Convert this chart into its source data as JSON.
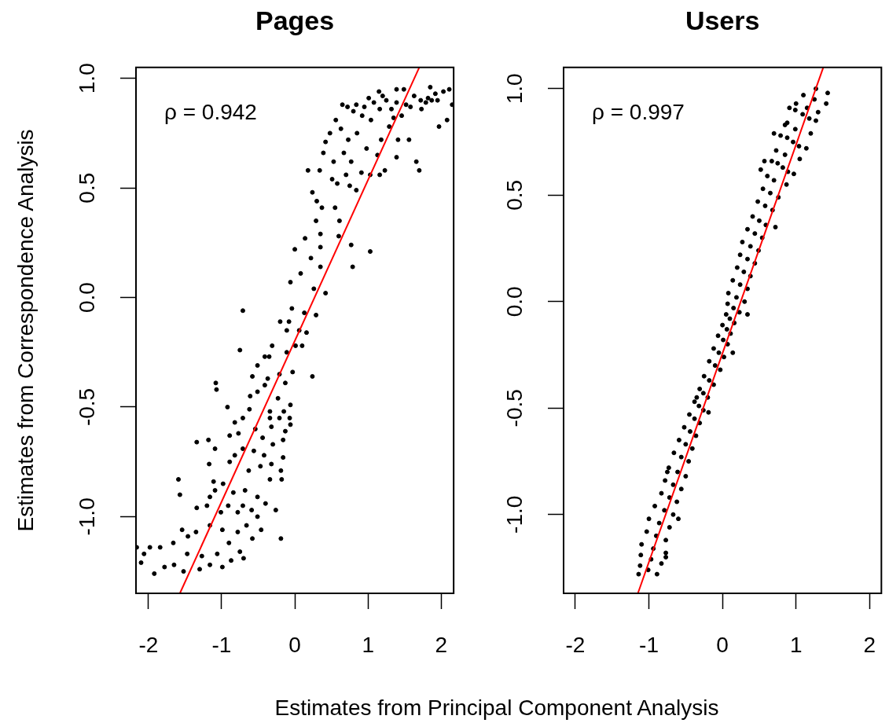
{
  "chart_data": [
    {
      "type": "scatter",
      "title": "Pages",
      "xlabel": "Estimates from Principal Component Analysis",
      "ylabel": "Estimates from Correspondence Analysis",
      "annotations": [
        "ρ = 0.942"
      ],
      "xlim": [
        -2.17,
        2.17
      ],
      "ylim": [
        -1.35,
        1.05
      ],
      "xticks": [
        -2,
        -1,
        0,
        1,
        2
      ],
      "yticks": [
        {
          "value": -1,
          "label": "-1.0"
        },
        {
          "value": -0.5,
          "label": "-0.5"
        },
        {
          "value": 0,
          "label": "0.0"
        },
        {
          "value": 0.5,
          "label": "0.5"
        },
        {
          "value": 1,
          "label": "1.0"
        }
      ],
      "marker": "circle",
      "series": [
        {
          "color": "#000000",
          "x": [
            -2.1,
            -2.06,
            -1.98,
            -1.92,
            -1.84,
            -1.78,
            -1.66,
            -1.59,
            -1.57,
            -1.65,
            -1.52,
            -1.54,
            -1.47,
            -1.46,
            -1.34,
            -1.34,
            -1.35,
            -1.3,
            -1.27,
            -1.18,
            -1.17,
            -1.16,
            -1.2,
            -1.16,
            -1.16,
            -1.11,
            -1.09,
            -1.08,
            -1.07,
            -1.09,
            -1.06,
            -0.99,
            -0.99,
            -1.01,
            -0.98,
            -0.92,
            -0.89,
            -0.89,
            -0.91,
            -0.9,
            -0.87,
            -0.84,
            -0.82,
            -0.82,
            -0.77,
            -0.78,
            -0.78,
            -0.75,
            -0.75,
            -0.71,
            -0.71,
            -0.71,
            -0.71,
            -0.68,
            -0.66,
            -0.7,
            -0.63,
            -0.61,
            -0.62,
            -0.59,
            -0.58,
            -0.58,
            -0.56,
            -0.54,
            -0.51,
            -0.51,
            -0.51,
            -0.51,
            -0.47,
            -0.46,
            -0.44,
            -0.42,
            -0.41,
            -0.41,
            -0.4,
            -0.37,
            -0.35,
            -0.34,
            -0.32,
            -0.34,
            -0.32,
            -0.31,
            -0.34,
            -0.3,
            -0.26,
            -0.21,
            -0.23,
            -0.21,
            -0.2,
            -0.19,
            -0.19,
            -0.18,
            -0.16,
            -0.16,
            -0.15,
            -0.13,
            -0.13,
            -0.11,
            -0.11,
            -0.08,
            -0.07,
            -0.06,
            -0.06,
            -0.04,
            -0.03,
            0.01,
            0.06,
            0.1,
            0.13,
            0.16,
            0.24,
            0.29,
            0.0,
            -0.06,
            0.08,
            0.18,
            0.24,
            0.14,
            0.22,
            0.26,
            0.29,
            0.3,
            0.34,
            0.37,
            0.35,
            0.35,
            0.39,
            0.42,
            0.48,
            0.35,
            0.42,
            0.51,
            0.53,
            0.55,
            0.56,
            0.6,
            0.58,
            0.63,
            0.67,
            0.61,
            0.7,
            0.72,
            0.75,
            0.73,
            0.77,
            0.77,
            0.79,
            0.85,
            0.84,
            0.84,
            0.91,
            0.92,
            1.03,
            0.98,
            1.01,
            1.03,
            1.04,
            1.13,
            1.15,
            1.16,
            1.18,
            1.16,
            1.23,
            1.25,
            1.29,
            1.32,
            1.39,
            1.39,
            1.39,
            1.41,
            1.46,
            1.49,
            1.56,
            1.58,
            1.63,
            1.66,
            1.7,
            1.73,
            1.72,
            1.82,
            1.85,
            1.92,
            1.97,
            2.03,
            2.08,
            2.11,
            2.15,
            1.87,
            1.79,
            -2.16,
            0.65,
            0.8,
            0.95,
            1.08,
            1.2,
            1.35,
            1.52,
            1.95
          ],
          "values": [
            -1.21,
            -1.17,
            -1.14,
            -1.26,
            -1.14,
            -1.23,
            -1.12,
            -0.83,
            -0.9,
            -1.22,
            -1.25,
            -1.06,
            -1.17,
            -1.09,
            -0.96,
            -0.66,
            -1.07,
            -1.24,
            -1.18,
            -0.65,
            -0.76,
            -0.91,
            -0.95,
            -1.22,
            -1.04,
            -0.84,
            -0.69,
            -0.39,
            -0.42,
            -0.88,
            -1.17,
            -1.23,
            -1.06,
            -0.98,
            -0.85,
            -0.5,
            -0.63,
            -0.75,
            -0.95,
            -1.12,
            -1.2,
            -0.89,
            -0.57,
            -0.72,
            -0.62,
            -0.98,
            -1.07,
            -1.16,
            -0.24,
            -0.06,
            -0.55,
            -0.69,
            -0.95,
            -0.88,
            -1.04,
            -1.19,
            -0.79,
            -0.45,
            -0.51,
            -0.97,
            -0.36,
            -1.1,
            -0.7,
            -0.6,
            -0.31,
            -0.43,
            -0.91,
            -1.0,
            -0.77,
            -1.06,
            -0.64,
            -0.72,
            -0.4,
            -0.27,
            -0.94,
            -0.37,
            -0.27,
            -0.83,
            -0.76,
            -0.55,
            -0.59,
            -0.22,
            -0.52,
            -0.67,
            -0.97,
            -0.55,
            -0.46,
            -0.35,
            -0.11,
            -1.1,
            -0.79,
            -0.83,
            -0.65,
            -0.73,
            -0.52,
            -0.61,
            -0.39,
            -0.25,
            -0.15,
            -0.11,
            -0.55,
            -0.58,
            -0.49,
            -0.05,
            -0.34,
            -0.22,
            -0.15,
            -0.22,
            -0.07,
            -0.16,
            -0.36,
            -0.08,
            0.22,
            0.07,
            0.11,
            0.58,
            0.48,
            0.27,
            0.18,
            0.04,
            0.35,
            0.44,
            0.58,
            0.41,
            0.29,
            0.23,
            0.66,
            0.71,
            0.75,
            0.14,
            0.02,
            0.54,
            0.62,
            0.41,
            0.81,
            0.28,
            0.52,
            0.77,
            0.66,
            0.35,
            0.56,
            0.87,
            0.51,
            0.72,
            0.62,
            0.24,
            0.14,
            0.75,
            0.49,
            0.88,
            0.57,
            0.83,
            0.21,
            0.68,
            0.91,
            0.56,
            0.81,
            0.65,
            0.94,
            0.56,
            0.72,
            0.86,
            0.58,
            0.9,
            0.78,
            0.86,
            0.95,
            0.64,
            0.89,
            0.72,
            0.83,
            0.95,
            0.72,
            0.87,
            0.92,
            0.62,
            0.58,
            0.86,
            0.9,
            0.91,
            0.96,
            0.93,
            0.78,
            0.94,
            0.81,
            0.95,
            0.88,
            0.9,
            0.89,
            -1.14,
            0.88,
            0.85,
            0.87,
            0.89,
            0.92,
            0.82,
            0.88,
            0.9
          ]
        },
        {
          "type": "line",
          "marker": "none",
          "color": "#ff0000",
          "x": [
            -1.57,
            1.7
          ],
          "values": [
            -1.35,
            1.05
          ]
        }
      ]
    },
    {
      "type": "scatter",
      "title": "Users",
      "annotations": [
        "ρ = 0.997"
      ],
      "xlim": [
        -2.16,
        2.16
      ],
      "ylim": [
        -1.37,
        1.1
      ],
      "xticks": [
        -2,
        -1,
        0,
        1,
        2
      ],
      "yticks": [
        {
          "value": -1,
          "label": "-1.0"
        },
        {
          "value": -0.5,
          "label": "-0.5"
        },
        {
          "value": 0,
          "label": "0.0"
        },
        {
          "value": 0.5,
          "label": "0.5"
        },
        {
          "value": 1,
          "label": "1.0"
        }
      ],
      "marker": "circle",
      "series": [
        {
          "color": "#000000",
          "x": [
            -1.12,
            -1.01,
            -0.89,
            -1.1,
            -0.94,
            -0.77,
            -1.0,
            -0.86,
            -0.72,
            -0.83,
            -0.72,
            -0.62,
            -0.73,
            -0.61,
            -0.5,
            -0.59,
            -0.5,
            -0.41,
            -0.45,
            -0.38,
            -0.31,
            -0.31,
            -0.26,
            -0.2,
            -0.18,
            -0.1,
            -0.03,
            -0.06,
            0.01,
            0.07,
            0.05,
            0.1,
            0.16,
            0.08,
            0.19,
            0.3,
            0.2,
            0.29,
            0.38,
            0.27,
            0.38,
            0.49,
            0.41,
            0.5,
            0.59,
            0.55,
            0.65,
            0.76,
            0.67,
            0.75,
            0.82,
            0.89,
            0.97,
            0.79,
            0.88,
            0.96,
            1.04,
            1.14,
            0.91,
            0.99,
            1.09,
            1.18,
            1.27,
            1.1,
            1.25,
            1.41,
            1.27,
            1.43,
            -1.11,
            -0.97,
            -0.83,
            -0.9,
            -0.79,
            -0.67,
            -0.56,
            -0.44,
            -0.32,
            -0.18,
            -0.05,
            0.06,
            0.15,
            0.24,
            0.34,
            0.44,
            0.58,
            0.7,
            0.85,
            0.99,
            1.15,
            0.57,
            0.52,
            0.7,
            0.88,
            0.72,
            0.34,
            0.14,
            -0.19,
            -0.35,
            -0.75,
            -0.6,
            -0.77,
            -1.14,
            -1.03,
            -0.92,
            -0.78,
            -0.66,
            -0.52,
            -0.38,
            -0.25,
            -0.12,
            0.0,
            0.07,
            0.14,
            0.24,
            0.34,
            0.48,
            0.61,
            0.73,
            0.85,
            1.0,
            -0.77,
            -0.67,
            -0.56,
            -0.46,
            -0.36,
            -0.26,
            -0.12,
            0.02,
            0.11,
            0.23,
            0.34,
            0.44,
            0.54,
            0.68,
            0.87,
            1.05,
            1.2,
            1.3
          ],
          "values": [
            -1.24,
            -1.26,
            -1.28,
            -1.14,
            -1.16,
            -1.18,
            -1.02,
            -1.04,
            -1.06,
            -0.9,
            -0.92,
            -0.94,
            -0.78,
            -0.8,
            -0.82,
            -0.65,
            -0.67,
            -0.69,
            -0.53,
            -0.55,
            -0.57,
            -0.41,
            -0.43,
            -0.45,
            -0.28,
            -0.3,
            -0.32,
            -0.16,
            -0.18,
            -0.2,
            -0.06,
            -0.08,
            -0.1,
            0.04,
            0.02,
            0.0,
            0.16,
            0.14,
            0.12,
            0.28,
            0.26,
            0.24,
            0.4,
            0.38,
            0.36,
            0.53,
            0.51,
            0.49,
            0.66,
            0.65,
            0.63,
            0.61,
            0.6,
            0.78,
            0.77,
            0.75,
            0.73,
            0.72,
            0.91,
            0.9,
            0.88,
            0.86,
            0.85,
            0.97,
            0.95,
            0.93,
            1.0,
            0.98,
            -1.19,
            -1.21,
            -1.23,
            -1.1,
            -0.98,
            -0.86,
            -0.73,
            -0.61,
            -0.49,
            -0.37,
            -0.24,
            -0.13,
            -0.03,
            0.08,
            0.2,
            0.32,
            0.45,
            0.57,
            0.69,
            0.81,
            0.91,
            0.66,
            0.62,
            0.79,
            0.84,
            0.35,
            -0.06,
            -0.24,
            -0.52,
            -0.45,
            -0.8,
            -1.02,
            -1.2,
            -1.28,
            -1.08,
            -0.96,
            -0.84,
            -0.71,
            -0.59,
            -0.47,
            -0.35,
            -0.22,
            -0.11,
            -0.01,
            0.1,
            0.22,
            0.34,
            0.47,
            0.59,
            0.71,
            0.83,
            0.93,
            -1.12,
            -1.0,
            -0.88,
            -0.75,
            -0.63,
            -0.51,
            -0.39,
            -0.26,
            -0.15,
            -0.05,
            0.06,
            0.18,
            0.3,
            0.43,
            0.55,
            0.67,
            0.79,
            0.89
          ]
        },
        {
          "type": "line",
          "marker": "none",
          "color": "#ff0000",
          "x": [
            -1.15,
            1.37
          ],
          "values": [
            -1.37,
            1.1
          ]
        }
      ]
    }
  ]
}
